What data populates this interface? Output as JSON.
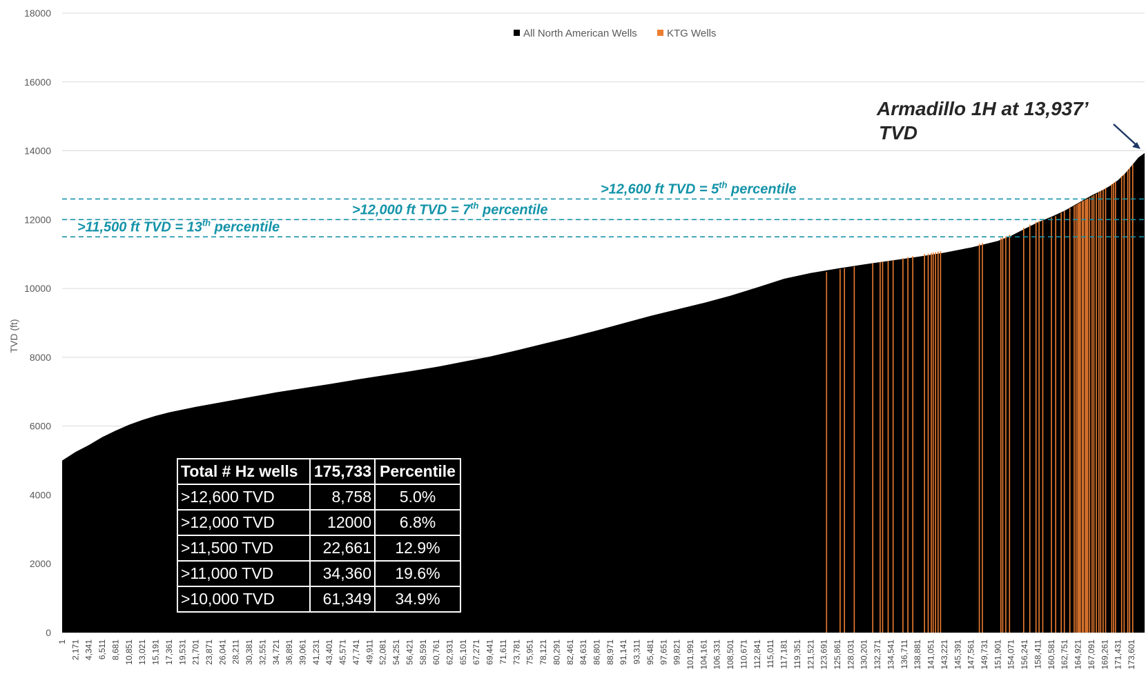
{
  "chart_data": {
    "type": "bar",
    "title": "",
    "xlabel": "",
    "ylabel": "TVD (ft)",
    "ylim": [
      0,
      18000
    ],
    "yticks": [
      "0",
      "2000",
      "4000",
      "6000",
      "8000",
      "10000",
      "12000",
      "14000",
      "16000",
      "18000"
    ],
    "grid": true,
    "legend_position": "top",
    "colors": {
      "all": "#000000",
      "ktg": "#ed7d31",
      "percentile_line": "#1493a8",
      "callout": "#1f3864"
    },
    "x_categories": [
      "1",
      "2,171",
      "4,341",
      "6,511",
      "8,681",
      "10,851",
      "13,021",
      "15,191",
      "17,361",
      "19,531",
      "21,701",
      "23,871",
      "26,041",
      "28,211",
      "30,381",
      "32,551",
      "34,721",
      "36,891",
      "39,061",
      "41,231",
      "43,401",
      "45,571",
      "47,741",
      "49,911",
      "52,081",
      "54,251",
      "56,421",
      "58,591",
      "60,761",
      "62,931",
      "65,101",
      "67,271",
      "69,441",
      "71,611",
      "73,781",
      "75,951",
      "78,121",
      "80,291",
      "82,461",
      "84,631",
      "86,801",
      "88,971",
      "91,141",
      "93,311",
      "95,481",
      "97,651",
      "99,821",
      "101,991",
      "104,161",
      "106,331",
      "108,501",
      "110,671",
      "112,841",
      "115,011",
      "117,181",
      "119,351",
      "121,521",
      "123,691",
      "125,861",
      "128,031",
      "130,201",
      "132,371",
      "134,541",
      "136,711",
      "138,881",
      "141,051",
      "143,221",
      "145,391",
      "147,561",
      "149,731",
      "151,901",
      "154,071",
      "156,241",
      "158,411",
      "160,581",
      "162,751",
      "164,921",
      "167,091",
      "169,261",
      "171,431",
      "173,601"
    ],
    "series": [
      {
        "name": "All North American Wells",
        "x": [
          1,
          2171,
          4341,
          6511,
          8681,
          10851,
          13021,
          15191,
          17361,
          19531,
          21701,
          26041,
          30381,
          34721,
          39061,
          43401,
          47741,
          52081,
          56421,
          60761,
          65101,
          69441,
          73781,
          78121,
          82461,
          86801,
          91141,
          95481,
          99821,
          104161,
          108501,
          112841,
          117181,
          121521,
          125861,
          130201,
          134541,
          138881,
          143221,
          147561,
          151901,
          154071,
          156241,
          158411,
          160581,
          162751,
          164921,
          167091,
          169261,
          170300,
          171431,
          172500,
          173601,
          174700,
          175733
        ],
        "values": [
          5000,
          5250,
          5450,
          5680,
          5870,
          6040,
          6180,
          6300,
          6400,
          6480,
          6560,
          6700,
          6840,
          6980,
          7100,
          7220,
          7350,
          7470,
          7590,
          7720,
          7870,
          8020,
          8200,
          8390,
          8580,
          8780,
          8990,
          9200,
          9390,
          9580,
          9790,
          10030,
          10280,
          10450,
          10580,
          10700,
          10810,
          10920,
          11040,
          11190,
          11380,
          11530,
          11730,
          11920,
          12080,
          12260,
          12480,
          12700,
          12890,
          13000,
          13150,
          13330,
          13560,
          13800,
          13937
        ]
      },
      {
        "name": "KTG Wells",
        "x": [
          124100,
          126300,
          127000,
          128600,
          131600,
          132800,
          133200,
          134100,
          134900,
          136500,
          137300,
          138100,
          140000,
          140600,
          141100,
          141400,
          141800,
          142200,
          142600,
          148900,
          149400,
          152400,
          152700,
          153200,
          153800,
          156100,
          157100,
          158100,
          158600,
          159200,
          160600,
          161300,
          162200,
          162700,
          163600,
          164300,
          164600,
          164900,
          165100,
          165300,
          165600,
          165800,
          166100,
          166300,
          166500,
          166800,
          167200,
          167500,
          167900,
          168300,
          168600,
          169000,
          169400,
          170400,
          170700,
          171000,
          172000,
          172400,
          173000,
          173300,
          173800
        ],
        "values": [
          10480,
          10560,
          10590,
          10640,
          10730,
          10770,
          10780,
          10800,
          10830,
          10880,
          10910,
          10940,
          11000,
          11010,
          11030,
          11040,
          11050,
          11070,
          11080,
          11300,
          11320,
          11460,
          11480,
          11510,
          11560,
          11760,
          11850,
          11930,
          11960,
          12000,
          12060,
          12100,
          12200,
          12250,
          12330,
          12400,
          12430,
          12460,
          12480,
          12500,
          12530,
          12550,
          12570,
          12590,
          12610,
          12640,
          12680,
          12710,
          12750,
          12800,
          12830,
          12870,
          12920,
          13030,
          13070,
          13110,
          13260,
          13320,
          13430,
          13490,
          13600
        ]
      }
    ],
    "percentile_lines": [
      {
        "tvd": 12600,
        "label": ">12,600 ft TVD = 5",
        "sup": "th",
        "suffix": " percentile"
      },
      {
        "tvd": 12000,
        "label": ">12,000 ft TVD = 7",
        "sup": "th",
        "suffix": " percentile"
      },
      {
        "tvd": 11500,
        "label": ">11,500 ft TVD = 13",
        "sup": "th",
        "suffix": " percentile"
      }
    ],
    "annotation": {
      "line1": "Armadillo 1H at 13,937’",
      "line2": "TVD",
      "tvd": 13937
    }
  },
  "summary_table": {
    "headers": [
      "Total # Hz wells",
      "175,733",
      "Percentile"
    ],
    "rows": [
      [
        ">12,600 TVD",
        "8,758",
        "5.0%"
      ],
      [
        ">12,000 TVD",
        "12000",
        "6.8%"
      ],
      [
        ">11,500 TVD",
        "22,661",
        "12.9%"
      ],
      [
        ">11,000 TVD",
        "34,360",
        "19.6%"
      ],
      [
        ">10,000 TVD",
        "61,349",
        "34.9%"
      ]
    ]
  }
}
